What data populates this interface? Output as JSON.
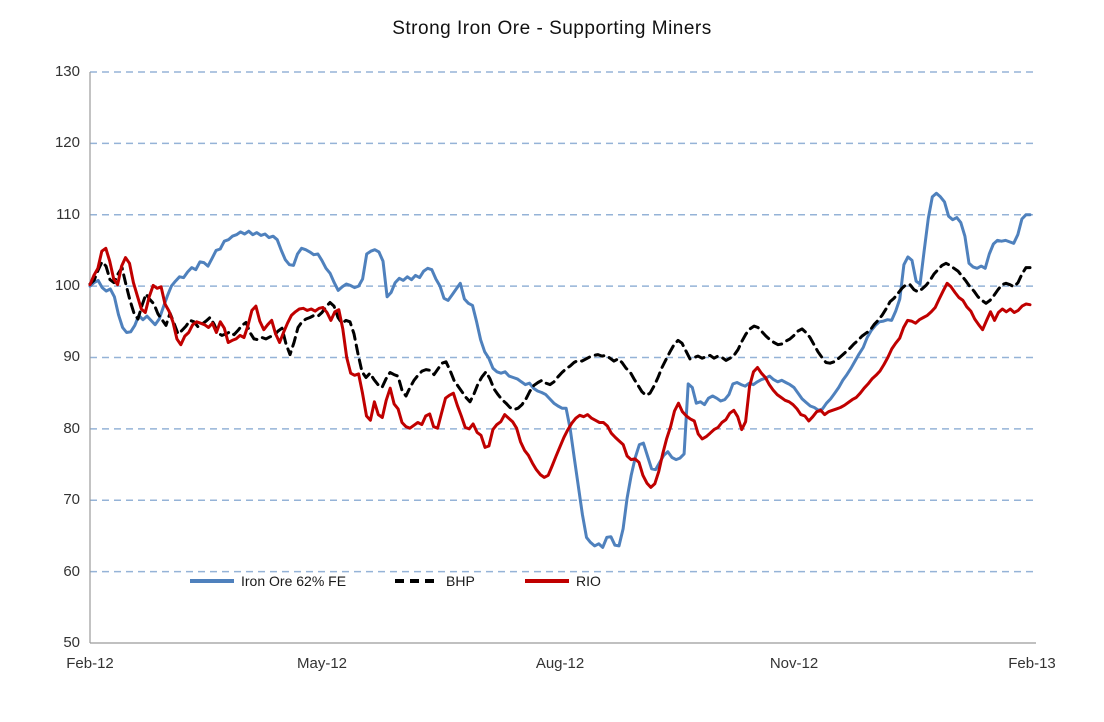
{
  "title": "Strong Iron Ore - Supporting Miners",
  "chart_data": {
    "type": "line",
    "title": "Strong Iron Ore - Supporting Miners",
    "xlabel": "",
    "ylabel": "",
    "x_axis": {
      "unit": "month",
      "range_months": [
        0,
        12
      ],
      "tick_labels": [
        "Feb-12",
        "May-12",
        "Aug-12",
        "Nov-12",
        "Feb-13"
      ]
    },
    "y_axis": {
      "min": 50,
      "max": 130,
      "step": 10,
      "ticks": [
        130,
        120,
        110,
        100,
        90,
        80,
        70,
        60,
        50
      ]
    },
    "grid": {
      "show": true,
      "color": "#95B3D7",
      "style": "dashed"
    },
    "axis_color": "#9b9b9b",
    "legend_position": "bottom-center",
    "series": [
      {
        "name": "Iron Ore 62% FE",
        "color": "#4F81BD",
        "style": "solid",
        "values": [
          100,
          100.5,
          100.8,
          99.8,
          99.3,
          99.6,
          98.5,
          96,
          94.2,
          93.5,
          93.6,
          94.5,
          95.9,
          95.3,
          95.8,
          95.2,
          94.6,
          95.4,
          97,
          98.6,
          100,
          100.7,
          101.3,
          101.2,
          102,
          102.6,
          102.3,
          103.4,
          103.3,
          102.8,
          103.9,
          105,
          105.2,
          106.3,
          106.5,
          107,
          107.2,
          107.6,
          107.3,
          107.7,
          107.2,
          107.5,
          107.1,
          107.3,
          106.8,
          107,
          106.5,
          105,
          103.7,
          103,
          102.9,
          104.5,
          105.3,
          105.1,
          104.8,
          104.4,
          104.5,
          103.6,
          102.5,
          101.8,
          100.5,
          99.4,
          99.9,
          100.3,
          100.1,
          99.8,
          100,
          101,
          104.5,
          104.9,
          105.1,
          104.8,
          103.5,
          98.5,
          99.1,
          100.5,
          101.1,
          100.8,
          101.3,
          100.9,
          101.5,
          101.2,
          102.1,
          102.5,
          102.3,
          101,
          100,
          98.3,
          98,
          98.8,
          99.6,
          100.4,
          98.2,
          97.6,
          97.3,
          95,
          92.5,
          90.8,
          89.9,
          88.5,
          88,
          87.8,
          88,
          87.4,
          87.2,
          87,
          86.6,
          86.2,
          86.4,
          85.7,
          85.3,
          85.1,
          84.8,
          84.2,
          83.6,
          83.2,
          82.9,
          82.9,
          80,
          76,
          72,
          68,
          64.8,
          64.1,
          63.6,
          63.9,
          63.4,
          64.8,
          64.9,
          63.7,
          63.6,
          66,
          70.3,
          73.5,
          76,
          77.8,
          78,
          76.2,
          74.4,
          74.3,
          75.3,
          76.3,
          76.8,
          76,
          75.7,
          75.9,
          76.5,
          86.3,
          85.8,
          83.6,
          83.8,
          83.4,
          84.3,
          84.6,
          84.3,
          83.9,
          84.1,
          84.8,
          86.3,
          86.5,
          86.2,
          86,
          86.4,
          86.2,
          86.6,
          86.9,
          87.1,
          87.4,
          86.9,
          86.6,
          86.8,
          86.5,
          86.2,
          85.8,
          85,
          84.2,
          83.7,
          83.2,
          83,
          82.6,
          82.8,
          83.6,
          84.2,
          85,
          85.8,
          86.8,
          87.6,
          88.5,
          89.5,
          90.5,
          91.4,
          92.8,
          93.8,
          94.5,
          95,
          95.1,
          95.3,
          95.2,
          96.5,
          98.2,
          103,
          104.1,
          103.6,
          100.7,
          100.3,
          105,
          109.5,
          112.5,
          113,
          112.5,
          111.8,
          109.8,
          109.3,
          109.6,
          108.9,
          107,
          103.2,
          102.7,
          102.5,
          102.8,
          102.5,
          104.5,
          105.9,
          106.4,
          106.3,
          106.4,
          106.2,
          106,
          107.2,
          109.4,
          110,
          110
        ]
      },
      {
        "name": "BHP",
        "color": "#000000",
        "style": "dashed",
        "values": [
          100.3,
          100.8,
          102.2,
          103.4,
          102.8,
          100.9,
          100.5,
          101.7,
          102.6,
          100.2,
          98,
          96.2,
          95.4,
          97.3,
          98.9,
          98.1,
          97.5,
          96.1,
          95.3,
          94.5,
          96.2,
          94.8,
          93.3,
          93.8,
          94.4,
          95.2,
          95,
          94.3,
          94.7,
          95.1,
          95.6,
          94.7,
          93.4,
          93.1,
          93.3,
          93.6,
          93.2,
          93.8,
          94.5,
          94.9,
          93.5,
          92.6,
          92.5,
          92.8,
          92.6,
          92.9,
          93.1,
          93.7,
          94.1,
          91.9,
          90.4,
          92.1,
          94.2,
          95,
          95.4,
          95.6,
          95.9,
          95.8,
          96.3,
          97.1,
          97.7,
          97.2,
          95.6,
          94.8,
          95.2,
          95,
          93.3,
          90.5,
          88,
          87.2,
          87.8,
          86.9,
          86.2,
          85.8,
          87,
          87.9,
          87.6,
          87.4,
          85.4,
          84.6,
          85.8,
          86.8,
          87.5,
          88.1,
          88.3,
          88.2,
          87.6,
          88.4,
          89.2,
          89.4,
          88.2,
          86.8,
          86,
          85.2,
          84.4,
          83.8,
          84.9,
          86.3,
          87.3,
          88,
          87,
          85.6,
          84.8,
          84.1,
          83.6,
          83,
          82.7,
          82.9,
          83.4,
          84.2,
          85.3,
          86.1,
          86.5,
          86.8,
          86.4,
          86.2,
          86.6,
          87.3,
          87.9,
          88.4,
          88.8,
          89.3,
          89.6,
          89.5,
          89.8,
          90.1,
          90.3,
          90.4,
          90.2,
          90.3,
          89.9,
          89.5,
          89.8,
          89.3,
          88.5,
          88,
          87,
          86.1,
          85.2,
          84.7,
          85,
          86,
          87.2,
          88.6,
          89.7,
          90.8,
          91.8,
          92.4,
          92,
          90.9,
          89.8,
          90,
          90.2,
          89.9,
          90.1,
          90.3,
          89.9,
          90.2,
          90,
          89.6,
          89.9,
          90.3,
          91.1,
          92.3,
          93.3,
          94,
          94.4,
          94.2,
          93.6,
          93,
          92.5,
          92.1,
          91.8,
          91.9,
          92.3,
          92.6,
          93.1,
          93.7,
          94,
          93.5,
          92.8,
          91.8,
          90.8,
          90,
          89.3,
          89.2,
          89.4,
          89.8,
          90.3,
          90.8,
          91.3,
          91.9,
          92.4,
          93,
          93.4,
          93.8,
          94.6,
          95.2,
          95.9,
          96.8,
          97.8,
          98.3,
          99,
          99.7,
          100.2,
          100.2,
          99.5,
          99.2,
          99.6,
          100.1,
          100.8,
          101.7,
          102.3,
          102.9,
          103.2,
          102.9,
          102.5,
          102.1,
          101.4,
          100.7,
          99.9,
          99.3,
          98.5,
          98,
          97.6,
          98,
          98.7,
          99.5,
          100.2,
          100.4,
          100.2,
          99.9,
          100.5,
          101.7,
          102.6,
          102.6
        ]
      },
      {
        "name": "RIO",
        "color": "#C00000",
        "style": "solid",
        "values": [
          100.2,
          101.5,
          102.5,
          104.9,
          105.3,
          103.5,
          101,
          100.2,
          102.8,
          104,
          103.2,
          100.5,
          98.6,
          96.8,
          96.3,
          98.5,
          100.1,
          99.7,
          99.9,
          97.5,
          96.5,
          95,
          92.6,
          91.8,
          93,
          93.5,
          94.6,
          95,
          94.8,
          94.6,
          94.2,
          94.8,
          93.5,
          95,
          94.1,
          92.1,
          92.4,
          92.6,
          93.1,
          92.8,
          94.5,
          96.6,
          97.2,
          95.1,
          93.9,
          94.6,
          95.2,
          93.3,
          92.1,
          93.5,
          94.8,
          95.9,
          96.4,
          96.8,
          96.9,
          96.6,
          96.8,
          96.5,
          96.9,
          97,
          96.3,
          95.2,
          96.4,
          96.7,
          94,
          90,
          87.8,
          87.5,
          87.7,
          85,
          81.8,
          81.2,
          83.8,
          82,
          81.6,
          84,
          85.7,
          83.5,
          82.8,
          80.9,
          80.3,
          80.1,
          80.5,
          80.9,
          80.6,
          81.8,
          82.1,
          80.3,
          80.1,
          82.2,
          84.3,
          84.7,
          85,
          83.3,
          81.8,
          80.2,
          80,
          80.7,
          79.5,
          79.1,
          77.4,
          77.6,
          79.9,
          80.6,
          81,
          82,
          81.5,
          81,
          80.1,
          78.2,
          77,
          76.3,
          75.2,
          74.3,
          73.6,
          73.2,
          73.5,
          74.8,
          76.2,
          77.5,
          78.8,
          79.9,
          80.8,
          81.5,
          81.9,
          81.7,
          82,
          81.5,
          81.2,
          80.9,
          80.9,
          80.4,
          79.4,
          78.8,
          78.3,
          77.8,
          76.2,
          75.7,
          75.8,
          75.3,
          73.5,
          72.4,
          71.8,
          72.3,
          74,
          76.5,
          78.6,
          80.3,
          82.5,
          83.6,
          82.4,
          81.8,
          81.4,
          81.1,
          79.3,
          78.6,
          78.9,
          79.4,
          79.9,
          80.2,
          80.9,
          81.3,
          82.2,
          82.6,
          81.7,
          79.9,
          81,
          86,
          88,
          88.6,
          87.8,
          87.2,
          86.2,
          85.4,
          84.8,
          84.4,
          84,
          83.8,
          83.4,
          82.8,
          82,
          81.8,
          81.1,
          81.7,
          82.4,
          82.6,
          82,
          82.4,
          82.6,
          82.8,
          83,
          83.3,
          83.7,
          84.1,
          84.4,
          85,
          85.7,
          86.3,
          87,
          87.5,
          88.1,
          89,
          90,
          91.2,
          92,
          92.7,
          94.2,
          95.2,
          95.1,
          94.8,
          95.3,
          95.6,
          95.9,
          96.4,
          97,
          98.2,
          99.3,
          100.4,
          99.9,
          99.1,
          98.4,
          98,
          97.1,
          96.5,
          95.4,
          94.6,
          93.9,
          95.2,
          96.4,
          95.2,
          96.3,
          96.8,
          96.4,
          96.8,
          96.3,
          96.6,
          97.2,
          97.5,
          97.4
        ]
      }
    ]
  }
}
